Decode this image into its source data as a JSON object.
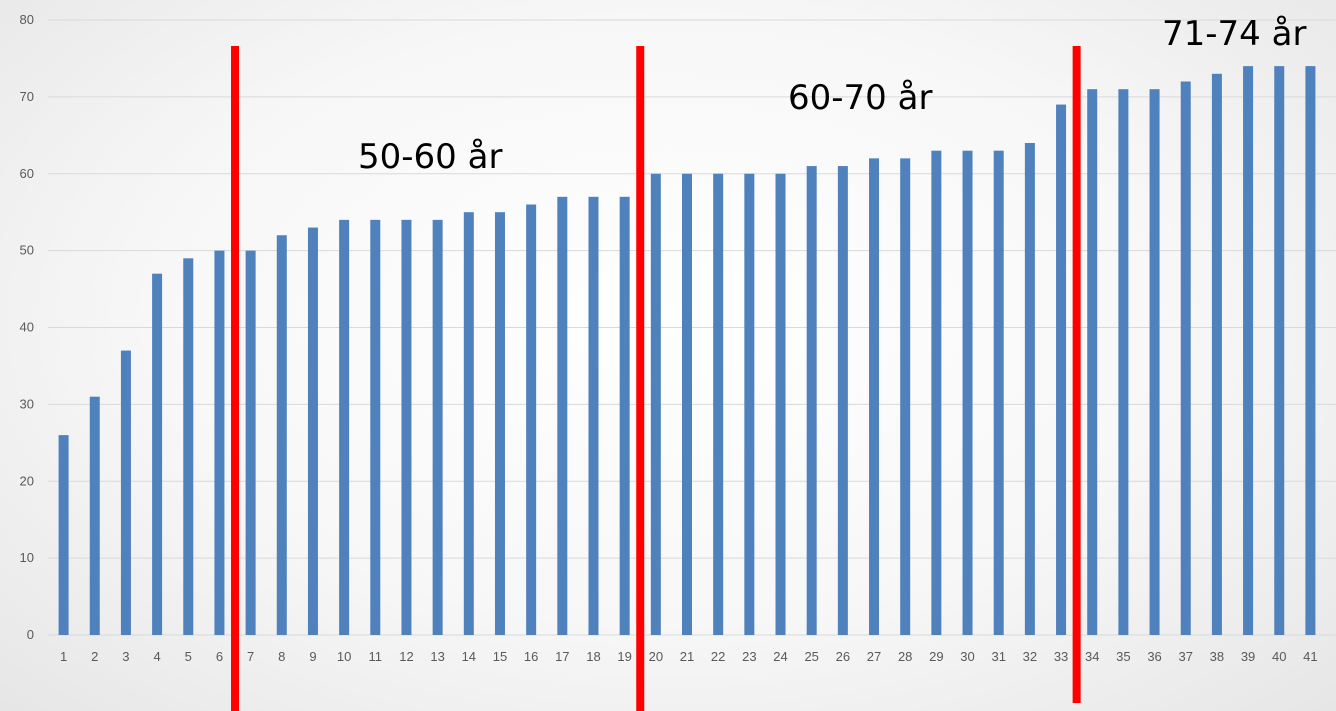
{
  "chart_data": {
    "type": "bar",
    "categories": [
      "1",
      "2",
      "3",
      "4",
      "5",
      "6",
      "7",
      "8",
      "9",
      "10",
      "11",
      "12",
      "13",
      "14",
      "15",
      "16",
      "17",
      "18",
      "19",
      "20",
      "21",
      "22",
      "23",
      "24",
      "25",
      "26",
      "27",
      "28",
      "29",
      "30",
      "31",
      "32",
      "33",
      "34",
      "35",
      "36",
      "37",
      "38",
      "39",
      "40",
      "41"
    ],
    "values": [
      26,
      31,
      37,
      47,
      49,
      50,
      50,
      52,
      53,
      54,
      54,
      54,
      54,
      55,
      55,
      56,
      57,
      57,
      57,
      60,
      60,
      60,
      60,
      60,
      61,
      61,
      62,
      62,
      63,
      63,
      63,
      64,
      69,
      71,
      71,
      71,
      72,
      73,
      74,
      74,
      74
    ],
    "title": "",
    "xlabel": "",
    "ylabel": "",
    "ylim": [
      0,
      80
    ],
    "yticks": [
      0,
      10,
      20,
      30,
      40,
      50,
      60,
      70,
      80
    ],
    "grid": true,
    "colors": {
      "bar": "#4f81bd",
      "divider": "#ff0000",
      "grid": "#d9d9d9"
    },
    "dividers": [
      {
        "between": [
          "6",
          "7"
        ]
      },
      {
        "between": [
          "19",
          "20"
        ]
      },
      {
        "between": [
          "33",
          "34"
        ]
      }
    ],
    "annotations": [
      {
        "text": "50-60 år"
      },
      {
        "text": "60-70 år"
      },
      {
        "text": "71-74 år"
      }
    ]
  }
}
